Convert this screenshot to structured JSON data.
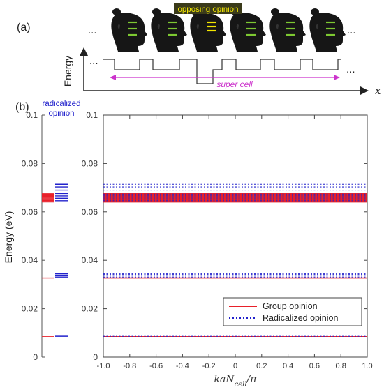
{
  "panel_a": {
    "label": "(a)",
    "highlight_label": "opposing opinion",
    "ellipsis": "...",
    "y_axis_label": "Energy",
    "x_axis_label": "x",
    "supercell_label": "super cell",
    "colors": {
      "group": "#7dc832",
      "opposing": "#f2e600",
      "supercell": "#cc33cc",
      "highlight_bg": "#3a3a1a"
    }
  },
  "panel_b": {
    "label": "(b)",
    "side_title_line1": "radicalized",
    "side_title_line2": "opinion"
  },
  "chart_data": [
    {
      "type": "line",
      "name": "left level diagram",
      "ylabel": "Energy (eV)",
      "ylim": [
        0,
        0.1
      ],
      "yticks": [
        0,
        0.02,
        0.04,
        0.06,
        0.08,
        0.1
      ],
      "ytick_labels": [
        "0",
        "0.02",
        "0.04",
        "0.06",
        "0.08",
        "0.1"
      ],
      "series": [
        {
          "color": "#e8202a",
          "levels": [
            0.0086,
            0.0327,
            0.0641,
            0.0645,
            0.0649,
            0.0653,
            0.0657,
            0.0661,
            0.0665,
            0.0669,
            0.0673,
            0.0677
          ]
        },
        {
          "color": "#2222cc",
          "levels": [
            0.0086,
            0.0089,
            0.0331,
            0.0339,
            0.0345,
            0.0646,
            0.0656,
            0.0666,
            0.0676,
            0.069,
            0.0703,
            0.0714
          ]
        }
      ]
    },
    {
      "type": "line",
      "xlabel": "kaN_cell/π",
      "xlim": [
        -1,
        1
      ],
      "ylim": [
        0,
        0.1
      ],
      "xticks": [
        -1.0,
        -0.8,
        -0.6,
        -0.4,
        -0.2,
        0,
        0.2,
        0.4,
        0.6,
        0.8,
        1.0
      ],
      "xtick_labels": [
        "-1.0",
        "-0.8",
        "-0.6",
        "-0.4",
        "-0.2",
        "0",
        "0.2",
        "0.4",
        "0.6",
        "0.8",
        "1.0"
      ],
      "yticks": [
        0,
        0.02,
        0.04,
        0.06,
        0.08,
        0.1
      ],
      "ytick_labels": [
        "0",
        "0.02",
        "0.04",
        "0.06",
        "0.08",
        "0.1"
      ],
      "legend_position": "bottom-right",
      "series": [
        {
          "name": "Group opinion",
          "style": "solid",
          "color": "#e8202a",
          "levels": [
            0.0086,
            0.0327,
            0.0641,
            0.0644,
            0.0647,
            0.065,
            0.0653,
            0.0656,
            0.0659,
            0.0662,
            0.0665,
            0.0668,
            0.0671,
            0.0674,
            0.0677
          ]
        },
        {
          "name": "Radicalized opinion",
          "style": "dotted",
          "color": "#2222cc",
          "levels": [
            0.0086,
            0.0089,
            0.0331,
            0.0336,
            0.0341,
            0.0345,
            0.0642,
            0.0648,
            0.0654,
            0.066,
            0.0666,
            0.0672,
            0.0678,
            0.069,
            0.0703,
            0.0714
          ]
        }
      ]
    }
  ]
}
